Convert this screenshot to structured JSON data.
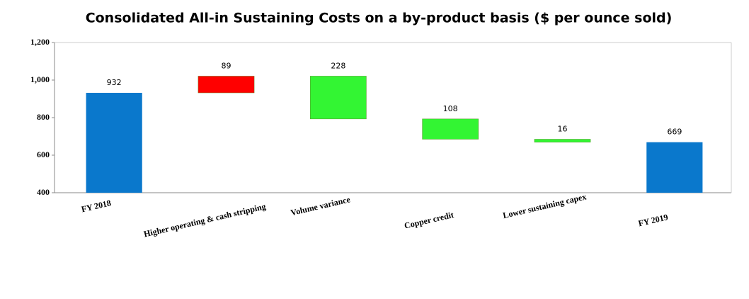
{
  "chart_data": {
    "type": "waterfall",
    "title": "Consolidated All-in Sustaining Costs on a by-product basis ($ per ounce sold)",
    "categories": [
      "FY 2018",
      "Higher operating & cash stripping",
      "Volume variance",
      "Copper credit",
      "Lower sustaining capex",
      "FY 2019"
    ],
    "values": [
      932,
      89,
      -228,
      -108,
      -16,
      669
    ],
    "value_labels": [
      "932",
      "89",
      "228",
      "108",
      "16",
      "669"
    ],
    "colors": {
      "total": "#0a78cc",
      "increase": "#ff0000",
      "decrease": "#33f533"
    },
    "ylim": [
      400,
      1200
    ],
    "yticks": [
      400,
      600,
      800,
      {
        "value": 1000,
        "label": "1,000"
      },
      {
        "value": 1200,
        "label": "1,200"
      }
    ],
    "grid": false
  }
}
